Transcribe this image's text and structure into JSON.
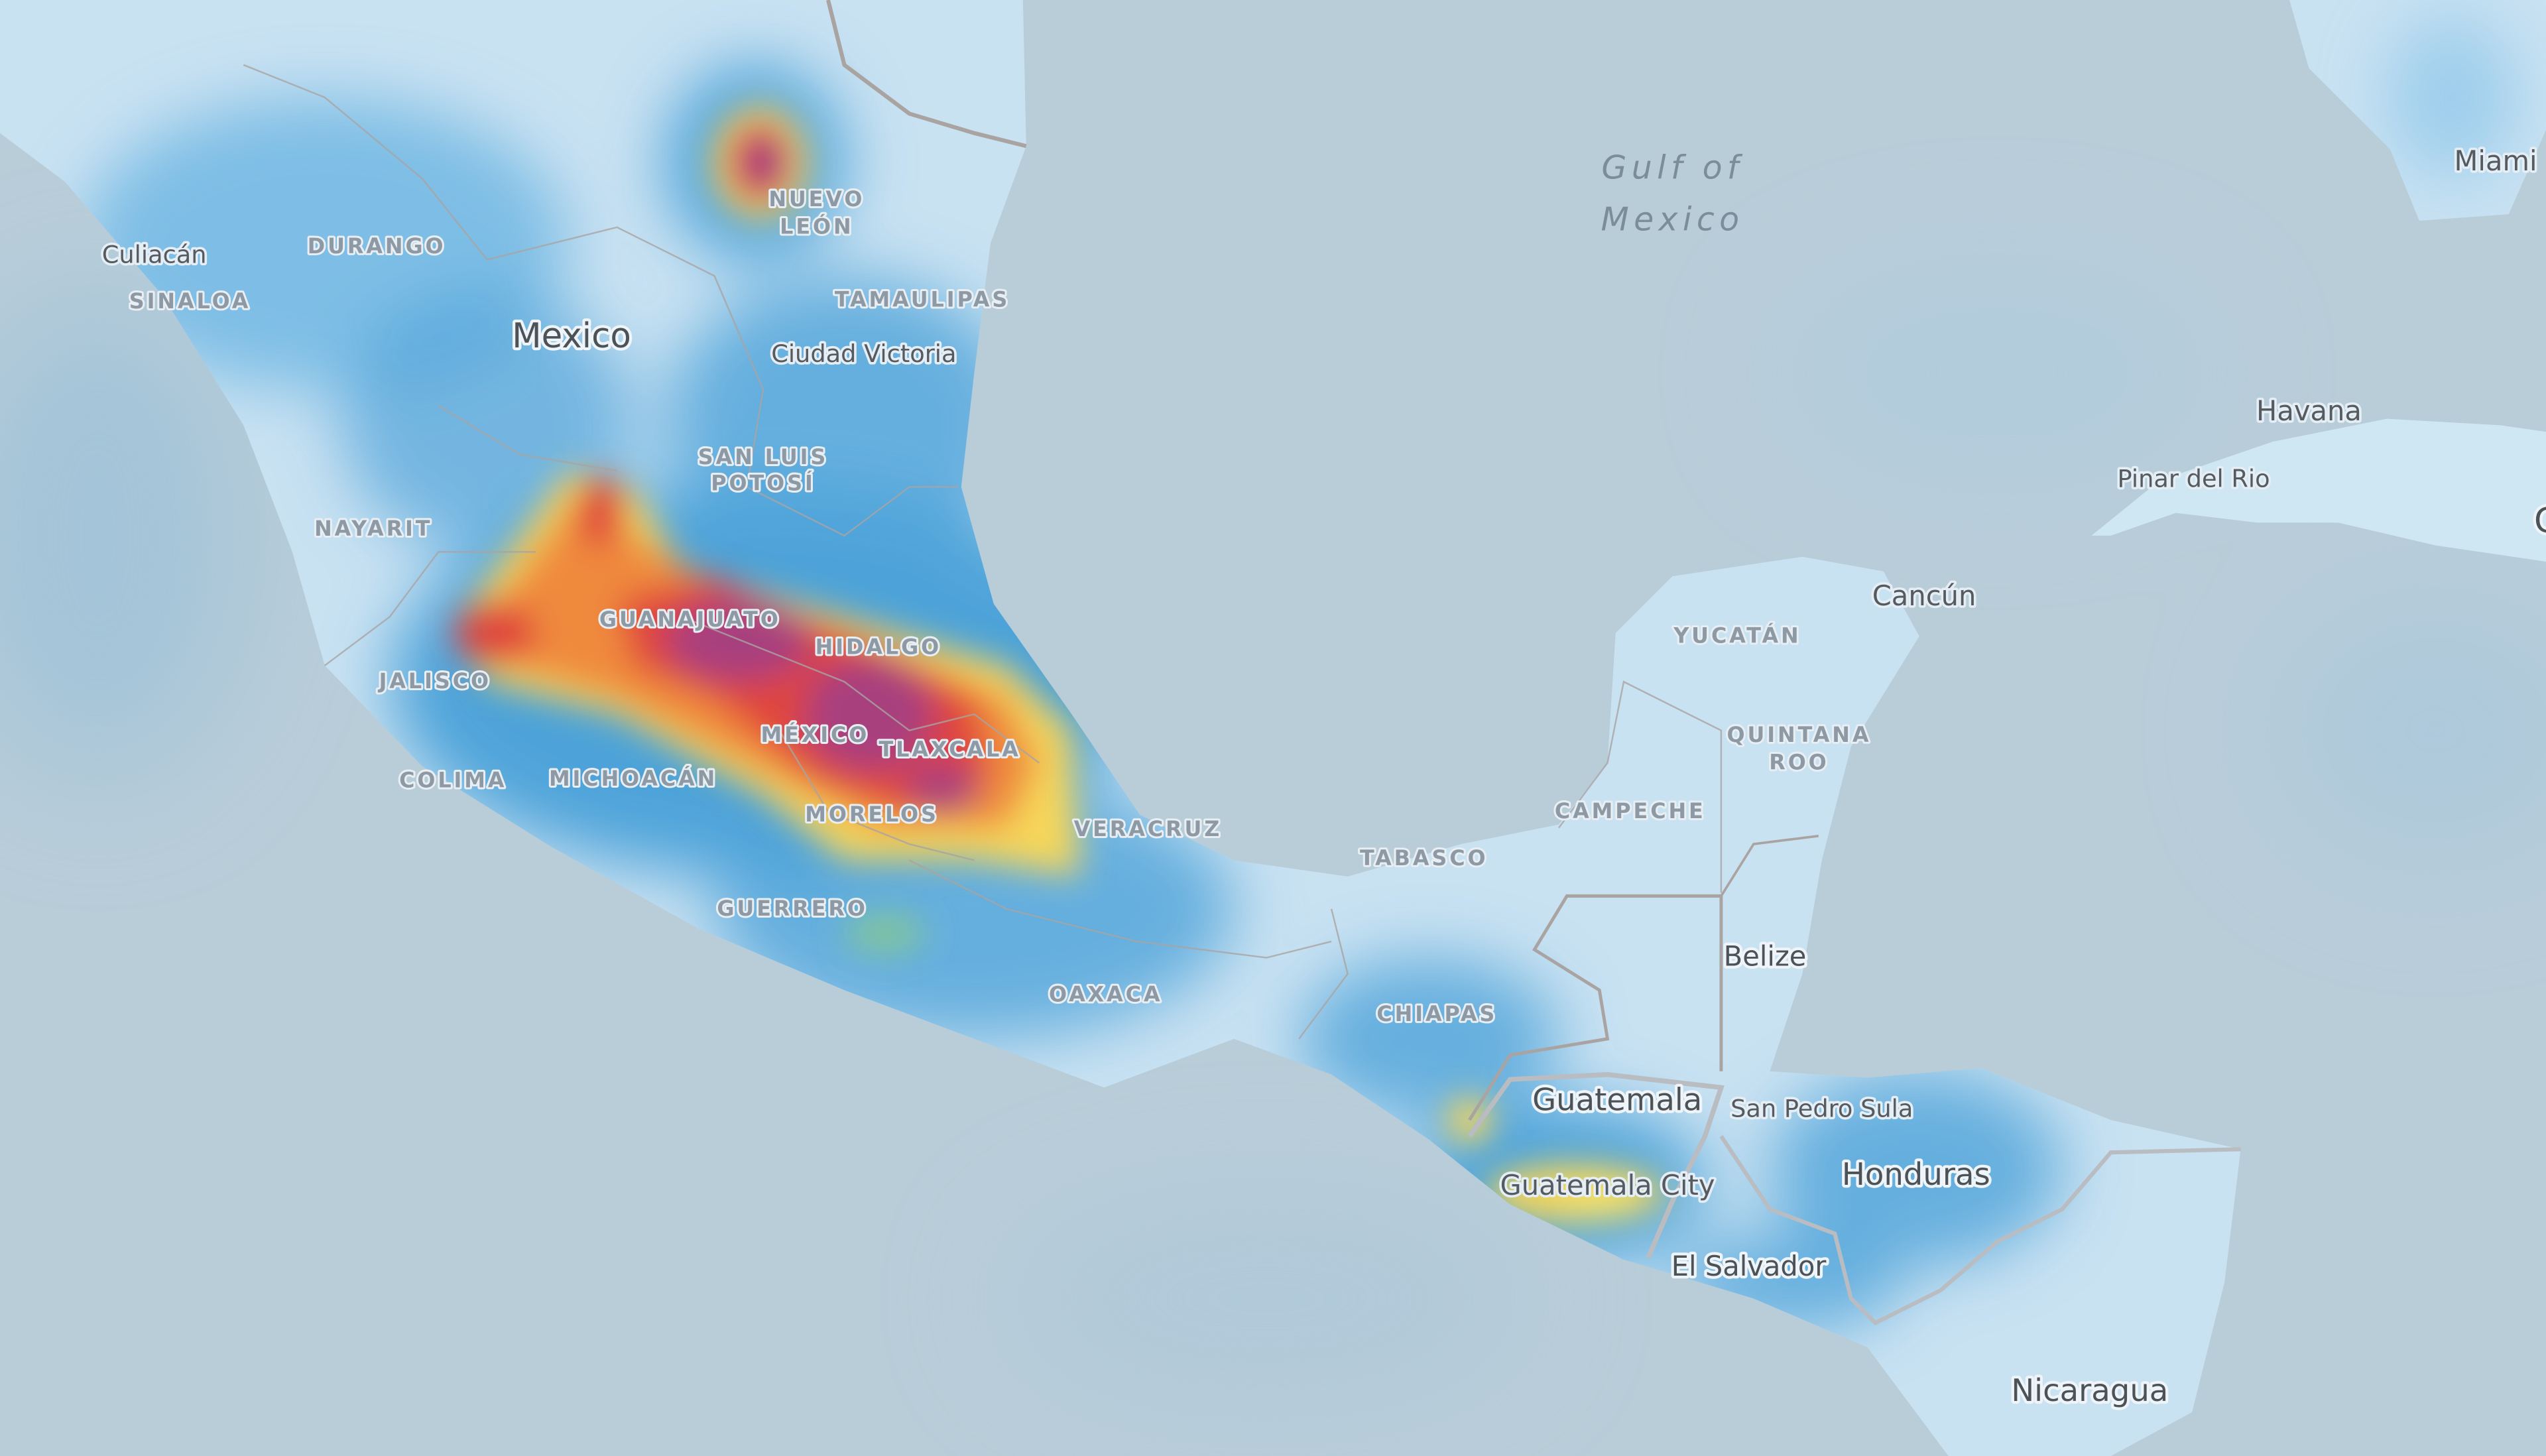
{
  "map": {
    "type": "heatmap-overlay",
    "colors": {
      "water": "#b9cdd9",
      "land": "#c9e2f2",
      "low": "#4ea3d9",
      "mid": "#f6d65a",
      "high": "#ef8a3c",
      "very_high": "#e0443c",
      "max": "#a8407e",
      "border": "#a9a4a2"
    },
    "water_labels": {
      "gulf_of_mexico": [
        "Gulf of",
        "Mexico"
      ]
    },
    "countries": {
      "mexico": "Mexico",
      "belize": "Belize",
      "guatemala": "Guatemala",
      "honduras": "Honduras",
      "el_salvador": "El Salvador",
      "nicaragua": "Nicaragua",
      "cuba_partial": "C"
    },
    "cities": {
      "culiacan": "Culiacán",
      "ciudad_victoria": "Ciudad Victoria",
      "cancun": "Cancún",
      "san_pedro_sula": "San Pedro Sula",
      "guatemala_city": "Guatemala City",
      "havana": "Havana",
      "pinar_del_rio": "Pinar del Rio",
      "miami": "Miami"
    },
    "states": {
      "durango": "DURANGO",
      "sinaloa": "SINALOA",
      "nuevo_leon": [
        "NUEVO",
        "LEÓN"
      ],
      "tamaulipas": "TAMAULIPAS",
      "san_luis_potosi": [
        "SAN LUIS",
        "POTOSÍ"
      ],
      "nayarit": "NAYARIT",
      "guanajuato": "GUANAJUATO",
      "hidalgo": "HIDALGO",
      "jalisco": "JALISCO",
      "mexico": "MÉXICO",
      "tlaxcala": "TLAXCALA",
      "colima": "COLIMA",
      "michoacan": "MICHOACÁN",
      "morelos": "MORELOS",
      "veracruz": "VERACRUZ",
      "guerrero": "GUERRERO",
      "oaxaca": "OAXACA",
      "tabasco": "TABASCO",
      "chiapas": "CHIAPAS",
      "yucatan": "YUCATÁN",
      "quintana_roo": [
        "QUINTANA",
        "ROO"
      ],
      "campeche": "CAMPECHE"
    }
  }
}
